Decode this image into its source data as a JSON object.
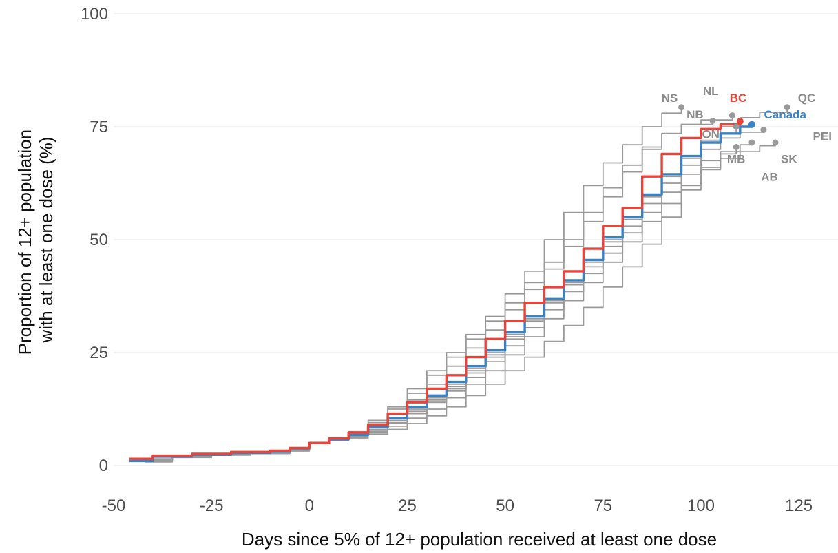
{
  "chart_data": {
    "type": "line",
    "title": "",
    "xlabel": "Days since 5% of 12+ population received at least one dose",
    "ylabel_lines": [
      "Proportion of 12+ population",
      "with at least one dose (%)"
    ],
    "xlim": [
      -50,
      135
    ],
    "ylim": [
      0,
      100
    ],
    "x_ticks": [
      -50,
      -25,
      0,
      25,
      50,
      75,
      100,
      125
    ],
    "y_ticks": [
      0,
      25,
      50,
      75,
      100
    ],
    "grid": "horizontal major",
    "legend": "none (direct end-of-line labels)",
    "colors": {
      "highlight_bc": "#e8443a",
      "highlight_canada": "#3b82c4",
      "province": "#9a9a9a",
      "province_label": "#8c8c8c"
    },
    "series": [
      {
        "name": "Canada",
        "color": "#3b82c4",
        "x": [
          -46,
          -40,
          -30,
          -20,
          -10,
          -5,
          0,
          5,
          10,
          15,
          20,
          25,
          30,
          35,
          40,
          45,
          50,
          55,
          60,
          65,
          70,
          75,
          80,
          85,
          90,
          95,
          100,
          105,
          110,
          113
        ],
        "y": [
          1,
          2,
          2.4,
          2.8,
          3.1,
          3.8,
          5,
          5.8,
          6.8,
          8.5,
          10.5,
          13,
          15.5,
          18.5,
          22,
          25.5,
          29.5,
          33,
          37,
          41,
          45.5,
          50.5,
          55,
          60,
          64.5,
          68.5,
          71.5,
          73.5,
          75,
          75.5
        ]
      },
      {
        "name": "BC",
        "color": "#e8443a",
        "x": [
          -46,
          -40,
          -30,
          -20,
          -10,
          -5,
          0,
          5,
          10,
          15,
          20,
          25,
          30,
          35,
          40,
          45,
          50,
          55,
          60,
          65,
          70,
          75,
          80,
          85,
          90,
          95,
          100,
          105,
          110
        ],
        "y": [
          1.5,
          2.2,
          2.6,
          3,
          3.3,
          3.9,
          5,
          6,
          7.3,
          9,
          11.5,
          14,
          17,
          20,
          24,
          28,
          32,
          36,
          39.5,
          43,
          48,
          53,
          57,
          64,
          69,
          72.5,
          74.5,
          75.5,
          76.2
        ]
      },
      {
        "name": "NS",
        "color": "#9a9a9a",
        "x": [
          -44,
          -35,
          -25,
          -15,
          -5,
          0,
          5,
          10,
          15,
          20,
          25,
          30,
          35,
          40,
          45,
          50,
          55,
          60,
          65,
          70,
          75,
          80,
          85,
          90,
          95
        ],
        "y": [
          1.5,
          2.3,
          2.6,
          2.9,
          3.6,
          5,
          6,
          7.5,
          10,
          13,
          17,
          21,
          25,
          29,
          33,
          38,
          43,
          50,
          56,
          62,
          67,
          71,
          75,
          78,
          79.3
        ]
      },
      {
        "name": "NL",
        "color": "#9a9a9a",
        "x": [
          -42,
          -35,
          -25,
          -15,
          -5,
          0,
          5,
          10,
          15,
          20,
          25,
          30,
          35,
          40,
          45,
          50,
          55,
          60,
          65,
          70,
          75,
          80,
          85,
          90,
          95,
          100,
          108
        ],
        "y": [
          1.2,
          2,
          2.4,
          2.8,
          3.4,
          5,
          5.8,
          7,
          9,
          11.5,
          14.5,
          18,
          22,
          26,
          30,
          34.5,
          39,
          43.5,
          48.5,
          54,
          59.5,
          65,
          70,
          73.5,
          75.5,
          76.5,
          77.5
        ]
      },
      {
        "name": "NB",
        "color": "#9a9a9a",
        "x": [
          -44,
          -35,
          -25,
          -15,
          -5,
          0,
          5,
          10,
          15,
          20,
          25,
          30,
          35,
          40,
          45,
          50,
          55,
          60,
          65,
          70,
          75,
          80,
          85,
          90,
          95,
          103
        ],
        "y": [
          1.3,
          2.1,
          2.5,
          2.9,
          3.5,
          5,
          5.9,
          7.2,
          9.5,
          12.5,
          16,
          20,
          24,
          28,
          32,
          36,
          40.5,
          45,
          50,
          56,
          61.5,
          66.5,
          70.5,
          73.5,
          75.5,
          76.3
        ]
      },
      {
        "name": "QC",
        "color": "#9a9a9a",
        "x": [
          -45,
          -35,
          -25,
          -15,
          -5,
          0,
          5,
          10,
          15,
          20,
          25,
          30,
          35,
          40,
          45,
          50,
          55,
          60,
          65,
          70,
          75,
          80,
          85,
          90,
          95,
          100,
          105,
          110,
          115,
          122
        ],
        "y": [
          1.4,
          2.2,
          2.6,
          2.9,
          3.5,
          5,
          5.7,
          6.6,
          8,
          10,
          12.5,
          15,
          18,
          21.5,
          25,
          29,
          33,
          37,
          41,
          45.5,
          50,
          55,
          60,
          64.5,
          68.5,
          72,
          75,
          77,
          78.2,
          79.3
        ]
      },
      {
        "name": "ON",
        "color": "#9a9a9a",
        "x": [
          -44,
          -35,
          -25,
          -15,
          -5,
          0,
          5,
          10,
          15,
          20,
          25,
          30,
          35,
          40,
          45,
          50,
          55,
          60,
          65,
          70,
          75,
          80,
          85,
          90,
          95,
          100,
          105,
          109
        ],
        "y": [
          1.3,
          2.1,
          2.5,
          2.8,
          3.5,
          5,
          5.6,
          6.5,
          8,
          10,
          12,
          14.5,
          17.5,
          21,
          24.5,
          28.5,
          32.5,
          36.5,
          40.5,
          45,
          49.5,
          54.5,
          59.5,
          64,
          68,
          71.5,
          73.5,
          75
        ]
      },
      {
        "name": "PEI",
        "color": "#9a9a9a",
        "x": [
          -43,
          -35,
          -25,
          -15,
          -5,
          0,
          5,
          10,
          15,
          20,
          25,
          30,
          35,
          40,
          45,
          50,
          55,
          60,
          65,
          70,
          75,
          80,
          85,
          90,
          95,
          100,
          105,
          110,
          116
        ],
        "y": [
          1.2,
          2,
          2.4,
          2.8,
          3.4,
          5,
          5.5,
          6.3,
          7.5,
          9.3,
          11.5,
          14,
          17,
          20.5,
          24,
          28,
          32,
          36,
          40,
          44,
          48.5,
          53,
          58,
          62.5,
          66.5,
          70,
          72.5,
          73.8,
          74.3
        ]
      },
      {
        "name": "MB",
        "color": "#9a9a9a",
        "x": [
          -43,
          -35,
          -25,
          -15,
          -5,
          0,
          5,
          10,
          15,
          20,
          25,
          30,
          35,
          40,
          45,
          50,
          55,
          60,
          65,
          70,
          75,
          80,
          85,
          90,
          95,
          100,
          105,
          110,
          113
        ],
        "y": [
          1.2,
          2,
          2.4,
          2.7,
          3.3,
          5,
          5.6,
          6.4,
          7.8,
          9.5,
          11.5,
          14,
          16.5,
          19.5,
          23,
          26.5,
          30.5,
          34.5,
          38.5,
          42.5,
          47,
          51.5,
          56,
          60.5,
          64.5,
          67.5,
          69.5,
          71,
          71.5
        ]
      },
      {
        "name": "SK",
        "color": "#9a9a9a",
        "x": [
          -44,
          -35,
          -25,
          -15,
          -5,
          0,
          5,
          10,
          15,
          20,
          25,
          30,
          35,
          40,
          45,
          50,
          55,
          60,
          65,
          70,
          75,
          80,
          85,
          90,
          95,
          100,
          105,
          110,
          115,
          119
        ],
        "y": [
          1.2,
          2,
          2.4,
          2.7,
          3.3,
          5,
          5.5,
          6.2,
          7.3,
          8.7,
          10.5,
          12.5,
          15,
          18,
          21,
          24.5,
          28.5,
          32.5,
          36.5,
          40.5,
          45,
          49.5,
          54,
          58,
          62,
          65.5,
          68,
          69.5,
          70.8,
          71.5
        ]
      },
      {
        "name": "AB",
        "color": "#9a9a9a",
        "x": [
          -42,
          -35,
          -25,
          -15,
          -5,
          0,
          5,
          10,
          15,
          20,
          25,
          30,
          35,
          40,
          45,
          50,
          55,
          60,
          65,
          70,
          75,
          80,
          85,
          90,
          95,
          100,
          105,
          109
        ],
        "y": [
          0.8,
          1.8,
          2.3,
          2.7,
          3.2,
          5,
          5.5,
          6.1,
          7,
          8,
          9.3,
          11,
          13,
          15.5,
          18,
          21,
          24,
          27.5,
          31,
          35,
          39.5,
          44,
          49,
          55,
          61,
          66,
          69,
          70.5
        ]
      }
    ],
    "end_labels": [
      {
        "text": "NS",
        "x": 92,
        "y": 80.5,
        "color": "#8c8c8c"
      },
      {
        "text": "NL",
        "x": 102.5,
        "y": 82,
        "color": "#8c8c8c"
      },
      {
        "text": "BC",
        "x": 109.5,
        "y": 80.5,
        "color": "#e8443a"
      },
      {
        "text": "QC",
        "x": 127,
        "y": 80.5,
        "color": "#8c8c8c"
      },
      {
        "text": "NB",
        "x": 98.5,
        "y": 76.8,
        "color": "#8c8c8c"
      },
      {
        "text": "Canada",
        "x": 121.5,
        "y": 76.8,
        "color": "#3b82c4"
      },
      {
        "text": "ON",
        "x": 102.5,
        "y": 72.5,
        "color": "#8c8c8c"
      },
      {
        "text": "PEI",
        "x": 131,
        "y": 72,
        "color": "#8c8c8c"
      },
      {
        "text": "MB",
        "x": 109,
        "y": 67,
        "color": "#8c8c8c"
      },
      {
        "text": "SK",
        "x": 122.5,
        "y": 67,
        "color": "#8c8c8c"
      },
      {
        "text": "AB",
        "x": 117.5,
        "y": 63,
        "color": "#8c8c8c"
      }
    ]
  }
}
